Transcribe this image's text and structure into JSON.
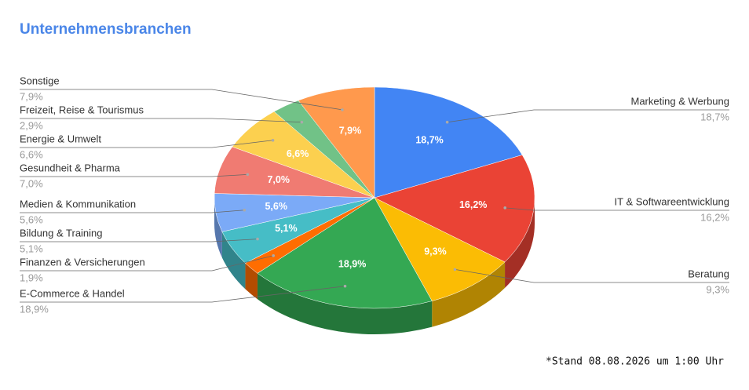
{
  "chart_data": {
    "type": "pie",
    "title": "Unternehmensbranchen",
    "categories": [
      "Marketing & Werbung",
      "IT & Softwareentwicklung",
      "Beratung",
      "E-Commerce & Handel",
      "Finanzen & Versicherungen",
      "Bildung & Training",
      "Medien & Kommunikation",
      "Gesundheit & Pharma",
      "Energie & Umwelt",
      "Freizeit, Reise & Tourismus",
      "Sonstige"
    ],
    "values": [
      18.7,
      16.2,
      9.3,
      18.9,
      1.9,
      5.1,
      5.6,
      7.0,
      6.6,
      2.9,
      7.9
    ],
    "value_labels": [
      "18,7%",
      "16,2%",
      "9,3%",
      "18,9%",
      "1,9%",
      "5,1%",
      "5,6%",
      "7,0%",
      "6,6%",
      "2,9%",
      "7,9%"
    ],
    "colors": [
      "#4285f4",
      "#ea4335",
      "#fbbc04",
      "#34a853",
      "#ff6d01",
      "#46bdc6",
      "#7baaf7",
      "#f07b72",
      "#fcd04f",
      "#71c287",
      "#ff994d"
    ],
    "footnote": "*Stand 08.08.2026 um 1:00 Uhr"
  }
}
